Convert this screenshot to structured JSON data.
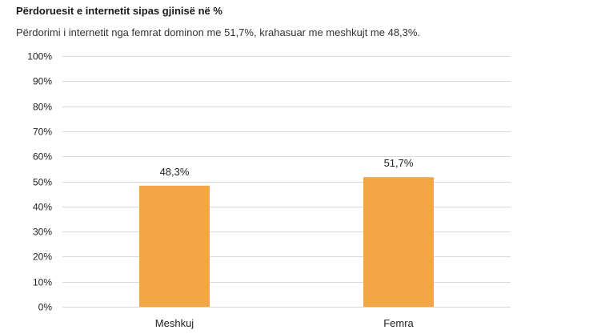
{
  "chart_data": {
    "type": "bar",
    "title": "Përdoruesit e internetit sipas gjinisë në %",
    "subtitle": "Përdorimi i internetit nga femrat dominon me 51,7%, krahasuar me meshkujt me 48,3%.",
    "categories": [
      "Meshkuj",
      "Femra"
    ],
    "values": [
      48.3,
      51.7
    ],
    "data_labels": [
      "48,3%",
      "51,7%"
    ],
    "ylim": [
      0,
      100
    ],
    "yticks": [
      0,
      10,
      20,
      30,
      40,
      50,
      60,
      70,
      80,
      90,
      100
    ],
    "ytick_labels": [
      "0%",
      "10%",
      "20%",
      "30%",
      "40%",
      "50%",
      "60%",
      "70%",
      "80%",
      "90%",
      "100%"
    ],
    "xlabel": "",
    "ylabel": "",
    "grid": true,
    "legend": "none",
    "bar_color": "#F4A646",
    "grid_color": "#D9D9D9"
  }
}
